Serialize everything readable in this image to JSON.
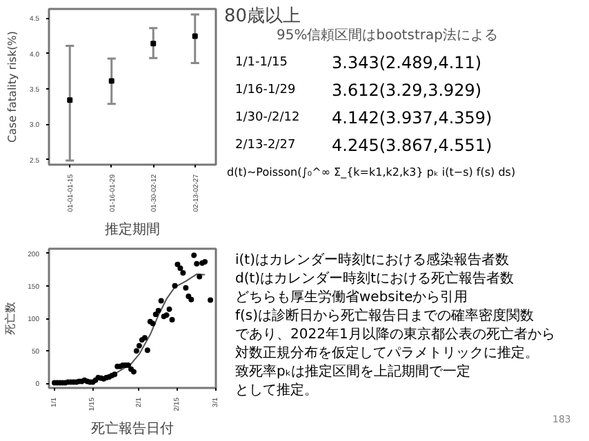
{
  "chart_data": [
    {
      "type": "scatter",
      "xlabel": "推定期間",
      "ylabel": "Case fatality risk(%)",
      "categories": [
        "01-01-01-15",
        "01-16-01-29",
        "01-30-02-12",
        "02-13-02-27"
      ],
      "values": [
        3.343,
        3.612,
        4.142,
        4.245
      ],
      "errors": [
        [
          2.489,
          4.11
        ],
        [
          3.29,
          3.929
        ],
        [
          3.937,
          4.359
        ],
        [
          3.867,
          4.551
        ]
      ],
      "color": "#000000",
      "ylim": [
        2.43,
        4.63
      ],
      "yticks": [
        2.5,
        {
          "value": 3,
          "label": "3.0"
        },
        3.5,
        {
          "value": 4,
          "label": "4.0"
        },
        4.5
      ],
      "grid": false,
      "marker": "square"
    },
    {
      "type": "scatter",
      "xlabel": "死亡報告日付",
      "ylabel": "死亡数",
      "xlim": [
        "2021-12-30",
        "2022-03-01"
      ],
      "ylim": [
        -7,
        207
      ],
      "yticks": [
        0,
        50,
        100,
        150,
        200
      ],
      "xticks": [
        {
          "value": "2022-01-01",
          "label": "1/1"
        },
        {
          "value": "2022-01-15",
          "label": "1/15"
        },
        {
          "value": "2022-02-01",
          "label": "2/1"
        },
        {
          "value": "2022-02-15",
          "label": "2/15"
        },
        {
          "value": "2022-03-01",
          "label": "3/1"
        }
      ],
      "grid": false,
      "series": [
        {
          "type": "scatter",
          "marker": "circle",
          "color": "#000000",
          "x": [
            "2022-01-01",
            "2022-01-02",
            "2022-01-03",
            "2022-01-04",
            "2022-01-05",
            "2022-01-06",
            "2022-01-07",
            "2022-01-08",
            "2022-01-09",
            "2022-01-10",
            "2022-01-11",
            "2022-01-12",
            "2022-01-13",
            "2022-01-14",
            "2022-01-15",
            "2022-01-16",
            "2022-01-17",
            "2022-01-18",
            "2022-01-19",
            "2022-01-20",
            "2022-01-21",
            "2022-01-22",
            "2022-01-23",
            "2022-01-24",
            "2022-01-25",
            "2022-01-26",
            "2022-01-27",
            "2022-01-28",
            "2022-01-29",
            "2022-01-30",
            "2022-01-31",
            "2022-02-01",
            "2022-02-02",
            "2022-02-03",
            "2022-02-04",
            "2022-02-05",
            "2022-02-06",
            "2022-02-07",
            "2022-02-08",
            "2022-02-09",
            "2022-02-10",
            "2022-02-11",
            "2022-02-12",
            "2022-02-13",
            "2022-02-14",
            "2022-02-15",
            "2022-02-16",
            "2022-02-17",
            "2022-02-18",
            "2022-02-19",
            "2022-02-20",
            "2022-02-21",
            "2022-02-22",
            "2022-02-23",
            "2022-02-24",
            "2022-02-25",
            "2022-02-27"
          ],
          "values": [
            1,
            1,
            1,
            1,
            1,
            2,
            2,
            2,
            2,
            3,
            3,
            5,
            3,
            2,
            2,
            5,
            9,
            8,
            7,
            9,
            10,
            12,
            14,
            26,
            26,
            28,
            28,
            28,
            22,
            18,
            50,
            58,
            67,
            70,
            51,
            95,
            92,
            106,
            112,
            127,
            103,
            105,
            114,
            98,
            150,
            183,
            177,
            170,
            147,
            134,
            129,
            197,
            184,
            164,
            185,
            187,
            128
          ]
        },
        {
          "type": "line",
          "marker": "none",
          "color": "#555555",
          "x": [
            "2022-01-01",
            "2022-01-15",
            "2022-01-22",
            "2022-01-29",
            "2022-02-01",
            "2022-02-05",
            "2022-02-08",
            "2022-02-11",
            "2022-02-14",
            "2022-02-18",
            "2022-02-22",
            "2022-02-25"
          ],
          "values": [
            0,
            3,
            12,
            30,
            45,
            75,
            105,
            130,
            148,
            157,
            168,
            167
          ]
        }
      ]
    },
    {
      "type": "other",
      "title": "80歳以上",
      "annotations": [
        "95%信頼区間はbootstrap法による",
        "1/1-1/15",
        "3.343(2.489,4.11)",
        "1/16-1/29",
        "3.612(3.29,3.929)",
        "1/30-/2/12",
        "4.142(3.937,4.359)",
        "2/13-2/27",
        "4.245(3.867,4.551)",
        "d(t)~Poisson(∫₀^∞ Σ_{k=k1,k2,k3} pₖ i(t−s) f(s) ds)",
        "i(t)はカレンダー時刻tにおける感染報告者数",
        "d(t)はカレンダー時刻tにおける死亡報告者数",
        "どちらも厚生労働省websiteから引用",
        "f(s)は診断日から死亡報告日までの確率密度関数",
        "であり、2022年1月以降の東京都公表の死亡者から",
        "対数正規分布を仮定してパラメトリックに推定。",
        "致死率pₖは推定区間を上記期間で一定",
        "として推定。",
        "183"
      ]
    }
  ]
}
